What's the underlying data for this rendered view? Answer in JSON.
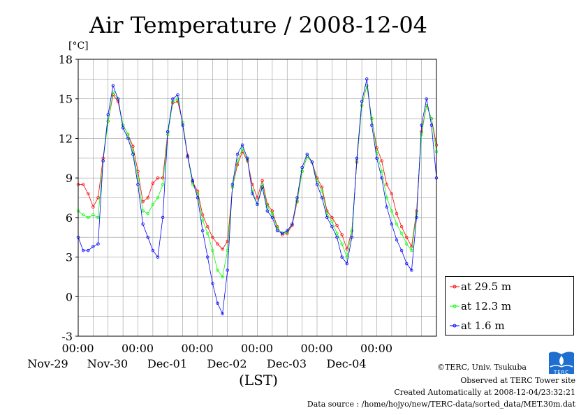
{
  "chart_data": {
    "type": "line",
    "title": "Air Temperature / 2008-12-04",
    "ylabel": "[°C]",
    "xlabel": "(LST)",
    "ylim": [
      -3,
      18
    ],
    "yticks": [
      -3,
      0,
      3,
      6,
      9,
      12,
      15,
      18
    ],
    "xlim": [
      0,
      144
    ],
    "xticks": [
      {
        "x": 24,
        "time": "00:00",
        "date": "Nov-29"
      },
      {
        "x": 48,
        "time": "00:00",
        "date": "Nov-30"
      },
      {
        "x": 72,
        "time": "00:00",
        "date": "Dec-01"
      },
      {
        "x": 96,
        "time": "00:00",
        "date": "Dec-02"
      },
      {
        "x": 120,
        "time": "00:00",
        "date": "Dec-03"
      },
      {
        "x": 144,
        "time": "00:00",
        "date": "Dec-04"
      }
    ],
    "grid": true,
    "legend_position": "bottom-right",
    "series": [
      {
        "name": "at 29.5 m",
        "color": "#ff0000",
        "x": [
          0,
          2,
          4,
          6,
          8,
          10,
          12,
          14,
          16,
          18,
          20,
          22,
          24,
          26,
          28,
          30,
          32,
          34,
          36,
          38,
          40,
          42,
          44,
          46,
          48,
          50,
          52,
          54,
          56,
          58,
          60,
          62,
          64,
          66,
          68,
          70,
          72,
          74,
          76,
          78,
          80,
          82,
          84,
          86,
          88,
          90,
          92,
          94,
          96,
          98,
          100,
          102,
          104,
          106,
          108,
          110,
          112,
          114,
          116,
          118,
          120,
          122,
          124,
          126,
          128,
          130,
          132,
          134,
          136,
          138,
          140,
          142,
          144
        ],
        "y": [
          8.5,
          8.5,
          7.8,
          6.8,
          7.5,
          10.5,
          13.3,
          15.3,
          14.8,
          13.0,
          12.3,
          11.4,
          9.5,
          7.2,
          7.5,
          8.6,
          9.0,
          9.0,
          12.5,
          14.7,
          14.8,
          13.2,
          10.7,
          8.7,
          8.0,
          6.2,
          5.3,
          4.5,
          4.0,
          3.6,
          4.2,
          8.3,
          10.0,
          11.0,
          10.3,
          8.5,
          7.5,
          8.8,
          7.0,
          6.5,
          5.3,
          4.7,
          4.8,
          5.4,
          7.2,
          9.5,
          10.6,
          10.2,
          9.0,
          8.3,
          6.5,
          6.0,
          5.4,
          4.7,
          3.6,
          5.0,
          10.2,
          14.5,
          16.0,
          13.5,
          11.3,
          10.3,
          8.5,
          7.8,
          6.3,
          5.3,
          4.5,
          3.8,
          6.5,
          12.5,
          14.5,
          13.5,
          11.5
        ]
      },
      {
        "name": "at 12.3 m",
        "color": "#00ff00",
        "x": [
          0,
          2,
          4,
          6,
          8,
          10,
          12,
          14,
          16,
          18,
          20,
          22,
          24,
          26,
          28,
          30,
          32,
          34,
          36,
          38,
          40,
          42,
          44,
          46,
          48,
          50,
          52,
          54,
          56,
          58,
          60,
          62,
          64,
          66,
          68,
          70,
          72,
          74,
          76,
          78,
          80,
          82,
          84,
          86,
          88,
          90,
          92,
          94,
          96,
          98,
          100,
          102,
          104,
          106,
          108,
          110,
          112,
          114,
          116,
          118,
          120,
          122,
          124,
          126,
          128,
          130,
          132,
          134,
          136,
          138,
          140,
          142,
          144
        ],
        "y": [
          6.5,
          6.2,
          6.0,
          6.2,
          6.0,
          10.3,
          13.3,
          15.5,
          15.0,
          13.0,
          12.3,
          11.0,
          9.0,
          6.5,
          6.3,
          7.0,
          7.5,
          8.5,
          12.3,
          14.8,
          15.0,
          13.2,
          10.6,
          8.5,
          7.8,
          5.8,
          4.8,
          3.5,
          2.0,
          1.5,
          3.5,
          8.3,
          10.3,
          11.2,
          10.4,
          8.0,
          7.0,
          8.5,
          6.8,
          6.3,
          5.2,
          4.8,
          4.9,
          5.5,
          7.3,
          9.5,
          10.6,
          10.2,
          8.8,
          8.0,
          6.3,
          5.7,
          4.8,
          4.0,
          3.0,
          5.0,
          10.3,
          14.5,
          16.0,
          13.5,
          11.0,
          9.5,
          7.5,
          6.5,
          5.5,
          4.8,
          4.0,
          3.5,
          6.3,
          12.3,
          14.5,
          13.5,
          11.0
        ]
      },
      {
        "name": "at 1.6 m",
        "color": "#0000ff",
        "x": [
          0,
          2,
          4,
          6,
          8,
          10,
          12,
          14,
          16,
          18,
          20,
          22,
          24,
          26,
          28,
          30,
          32,
          34,
          36,
          38,
          40,
          42,
          44,
          46,
          48,
          50,
          52,
          54,
          56,
          58,
          60,
          62,
          64,
          66,
          68,
          70,
          72,
          74,
          76,
          78,
          80,
          82,
          84,
          86,
          88,
          90,
          92,
          94,
          96,
          98,
          100,
          102,
          104,
          106,
          108,
          110,
          112,
          114,
          116,
          118,
          120,
          122,
          124,
          126,
          128,
          130,
          132,
          134,
          136,
          138,
          140,
          142,
          144
        ],
        "y": [
          4.5,
          3.5,
          3.5,
          3.8,
          4.0,
          10.3,
          13.8,
          16.0,
          15.0,
          12.8,
          12.0,
          10.8,
          8.5,
          5.5,
          4.5,
          3.5,
          3.0,
          6.0,
          12.5,
          15.0,
          15.3,
          13.0,
          10.6,
          8.8,
          7.5,
          5.0,
          3.0,
          1.0,
          -0.5,
          -1.3,
          2.0,
          8.5,
          10.8,
          11.5,
          10.5,
          7.8,
          7.0,
          8.3,
          6.5,
          6.0,
          5.0,
          4.8,
          5.0,
          5.5,
          7.5,
          9.8,
          10.8,
          10.2,
          8.5,
          7.5,
          6.0,
          5.3,
          4.5,
          3.0,
          2.5,
          4.5,
          10.5,
          14.8,
          16.5,
          13.0,
          10.5,
          9.0,
          6.8,
          5.5,
          4.3,
          3.5,
          2.5,
          2.0,
          6.0,
          13.0,
          15.0,
          13.0,
          9.0
        ]
      }
    ]
  },
  "credits": {
    "copyright": "©TERC, Univ. Tsukuba",
    "observed": "Observed at TERC Tower site",
    "created": "Created Automatically at 2008-12-04/23:32:21",
    "source": "Data source : /home/hojyo/new/TERC-data/sorted_data/MET.30m.dat",
    "logo_text": "TERC"
  }
}
